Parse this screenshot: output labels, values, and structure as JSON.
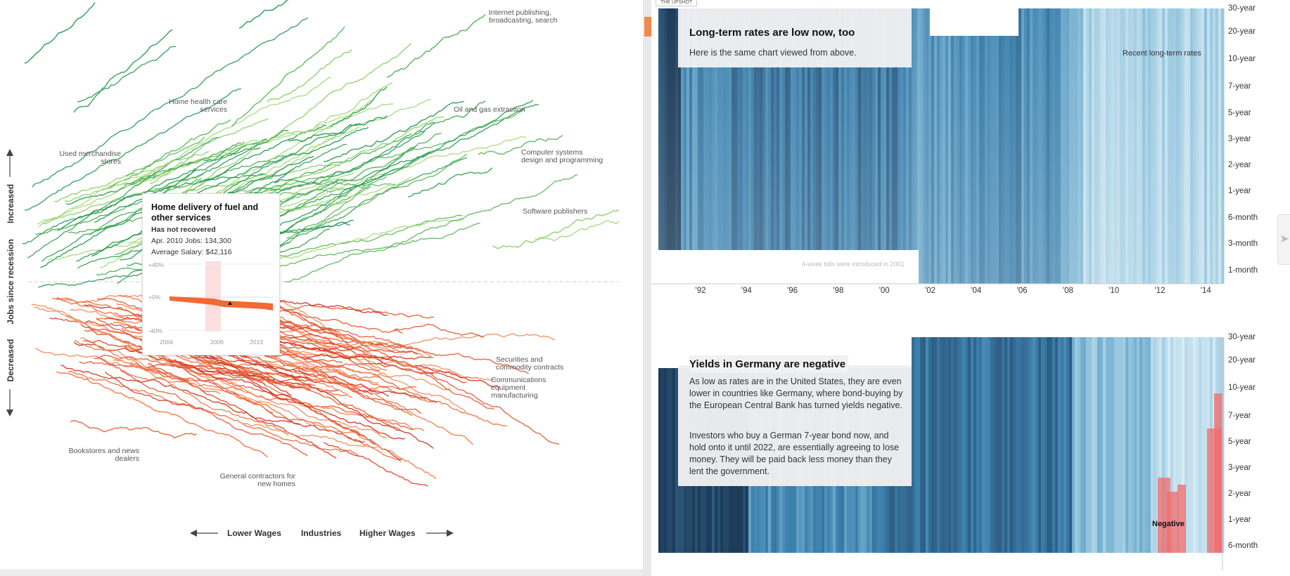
{
  "header": {
    "sticky_label": "THE UPSHOT"
  },
  "left_chart": {
    "y_axis_title": "Jobs since recession",
    "y_increased": "Increased",
    "y_decreased": "Decreased",
    "x_center": "Industries",
    "x_lower": "Lower Wages",
    "x_higher": "Higher Wages",
    "industry_labels": [
      "Internet publishing, broadcasting, search",
      "Home health care services",
      "Oil and gas extraction",
      "Used merchandise stores",
      "Computer systems design and programming",
      "Software publishers",
      "Securities and commodity contracts",
      "Communications equipment manufacturing",
      "Bookstores and news dealers",
      "General contractors for new homes"
    ],
    "tooltip": {
      "title": "Home delivery of fuel and other services",
      "status": "Has not recovered",
      "jobs_label": "Apr.  2010 Jobs: 134,300",
      "salary_label": "Average Salary: $42,116",
      "y_ticks": [
        "+40%",
        "+0%",
        "-40%"
      ],
      "x_ticks": [
        "2004",
        "2009",
        "2013"
      ]
    }
  },
  "chart_data": [
    {
      "type": "line",
      "title": "",
      "xlabel": "Industries",
      "ylabel": "Jobs since recession",
      "series_groups": [
        "Increased",
        "Decreased"
      ],
      "labeled_industries": [
        "Internet publishing, broadcasting, search",
        "Home health care services",
        "Oil and gas extraction",
        "Used merchandise stores",
        "Computer systems design and programming",
        "Software publishers",
        "Securities and commodity contracts",
        "Communications equipment manufacturing",
        "Bookstores and news dealers",
        "General contractors for new homes"
      ]
    },
    {
      "type": "heatmap",
      "title": "Long-term rates are low now, too",
      "subtitle": "Here is the same chart viewed from above.",
      "annotation": "Recent long-term rates",
      "note": "4-week bills were introduced in 2001",
      "x_ticks": [
        "'92",
        "'94",
        "'96",
        "'98",
        "'00",
        "'02",
        "'04",
        "'06",
        "'08",
        "'10",
        "'12",
        "'14"
      ],
      "y_ticks": [
        "30-year",
        "20-year",
        "10-year",
        "7-year",
        "5-year",
        "3-year",
        "2-year",
        "1-year",
        "6-month",
        "3-month",
        "1-month"
      ],
      "xlim": [
        1990,
        2015.3
      ]
    },
    {
      "type": "heatmap",
      "title": "Yields in Germany are negative",
      "paragraphs": [
        "As low as rates are in the United States, they are even lower in countries like Germany, where bond-buying by the European Central Bank has turned yields negative.",
        "Investors who buy a German 7-year bond now, and hold onto it until 2022, are essentially agreeing to lose money. They will be paid back less money than they lent the government."
      ],
      "annotation": "Negative",
      "y_ticks": [
        "30-year",
        "20-year",
        "10-year",
        "7-year",
        "5-year",
        "3-year",
        "2-year",
        "1-year",
        "6-month"
      ]
    }
  ]
}
